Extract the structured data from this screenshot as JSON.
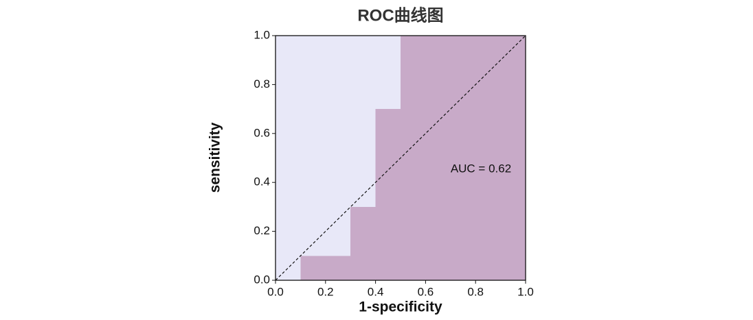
{
  "chart_data": {
    "type": "area",
    "title": "ROC曲线图",
    "x_label": "1-specificity",
    "y_label": "sensitivity",
    "x": [
      0,
      0.1,
      0.1,
      0.3,
      0.3,
      0.4,
      0.4,
      0.5,
      0.5,
      1
    ],
    "values": [
      0,
      0,
      0.1,
      0.1,
      0.3,
      0.3,
      0.7,
      0.7,
      1,
      1
    ],
    "color": "#c8aac8",
    "background": "#e8e8f8",
    "annotation": "AUC = 0.62",
    "xlim": [
      0,
      1
    ],
    "ylim": [
      0,
      1
    ],
    "xticks": [
      {
        "value": 0,
        "label": "0.0"
      },
      {
        "value": 0.2,
        "label": "0.2"
      },
      {
        "value": 0.4,
        "label": "0.4"
      },
      {
        "value": 0.6,
        "label": "0.6"
      },
      {
        "value": 0.8,
        "label": "0.8"
      },
      {
        "value": 1,
        "label": "1.0"
      }
    ],
    "yticks": [
      {
        "value": 0,
        "label": "0.0"
      },
      {
        "value": 0.2,
        "label": "0.2"
      },
      {
        "value": 0.4,
        "label": "0.4"
      },
      {
        "value": 0.6,
        "label": "0.6"
      },
      {
        "value": 0.8,
        "label": "0.8"
      },
      {
        "value": 1,
        "label": "1.0"
      }
    ]
  }
}
